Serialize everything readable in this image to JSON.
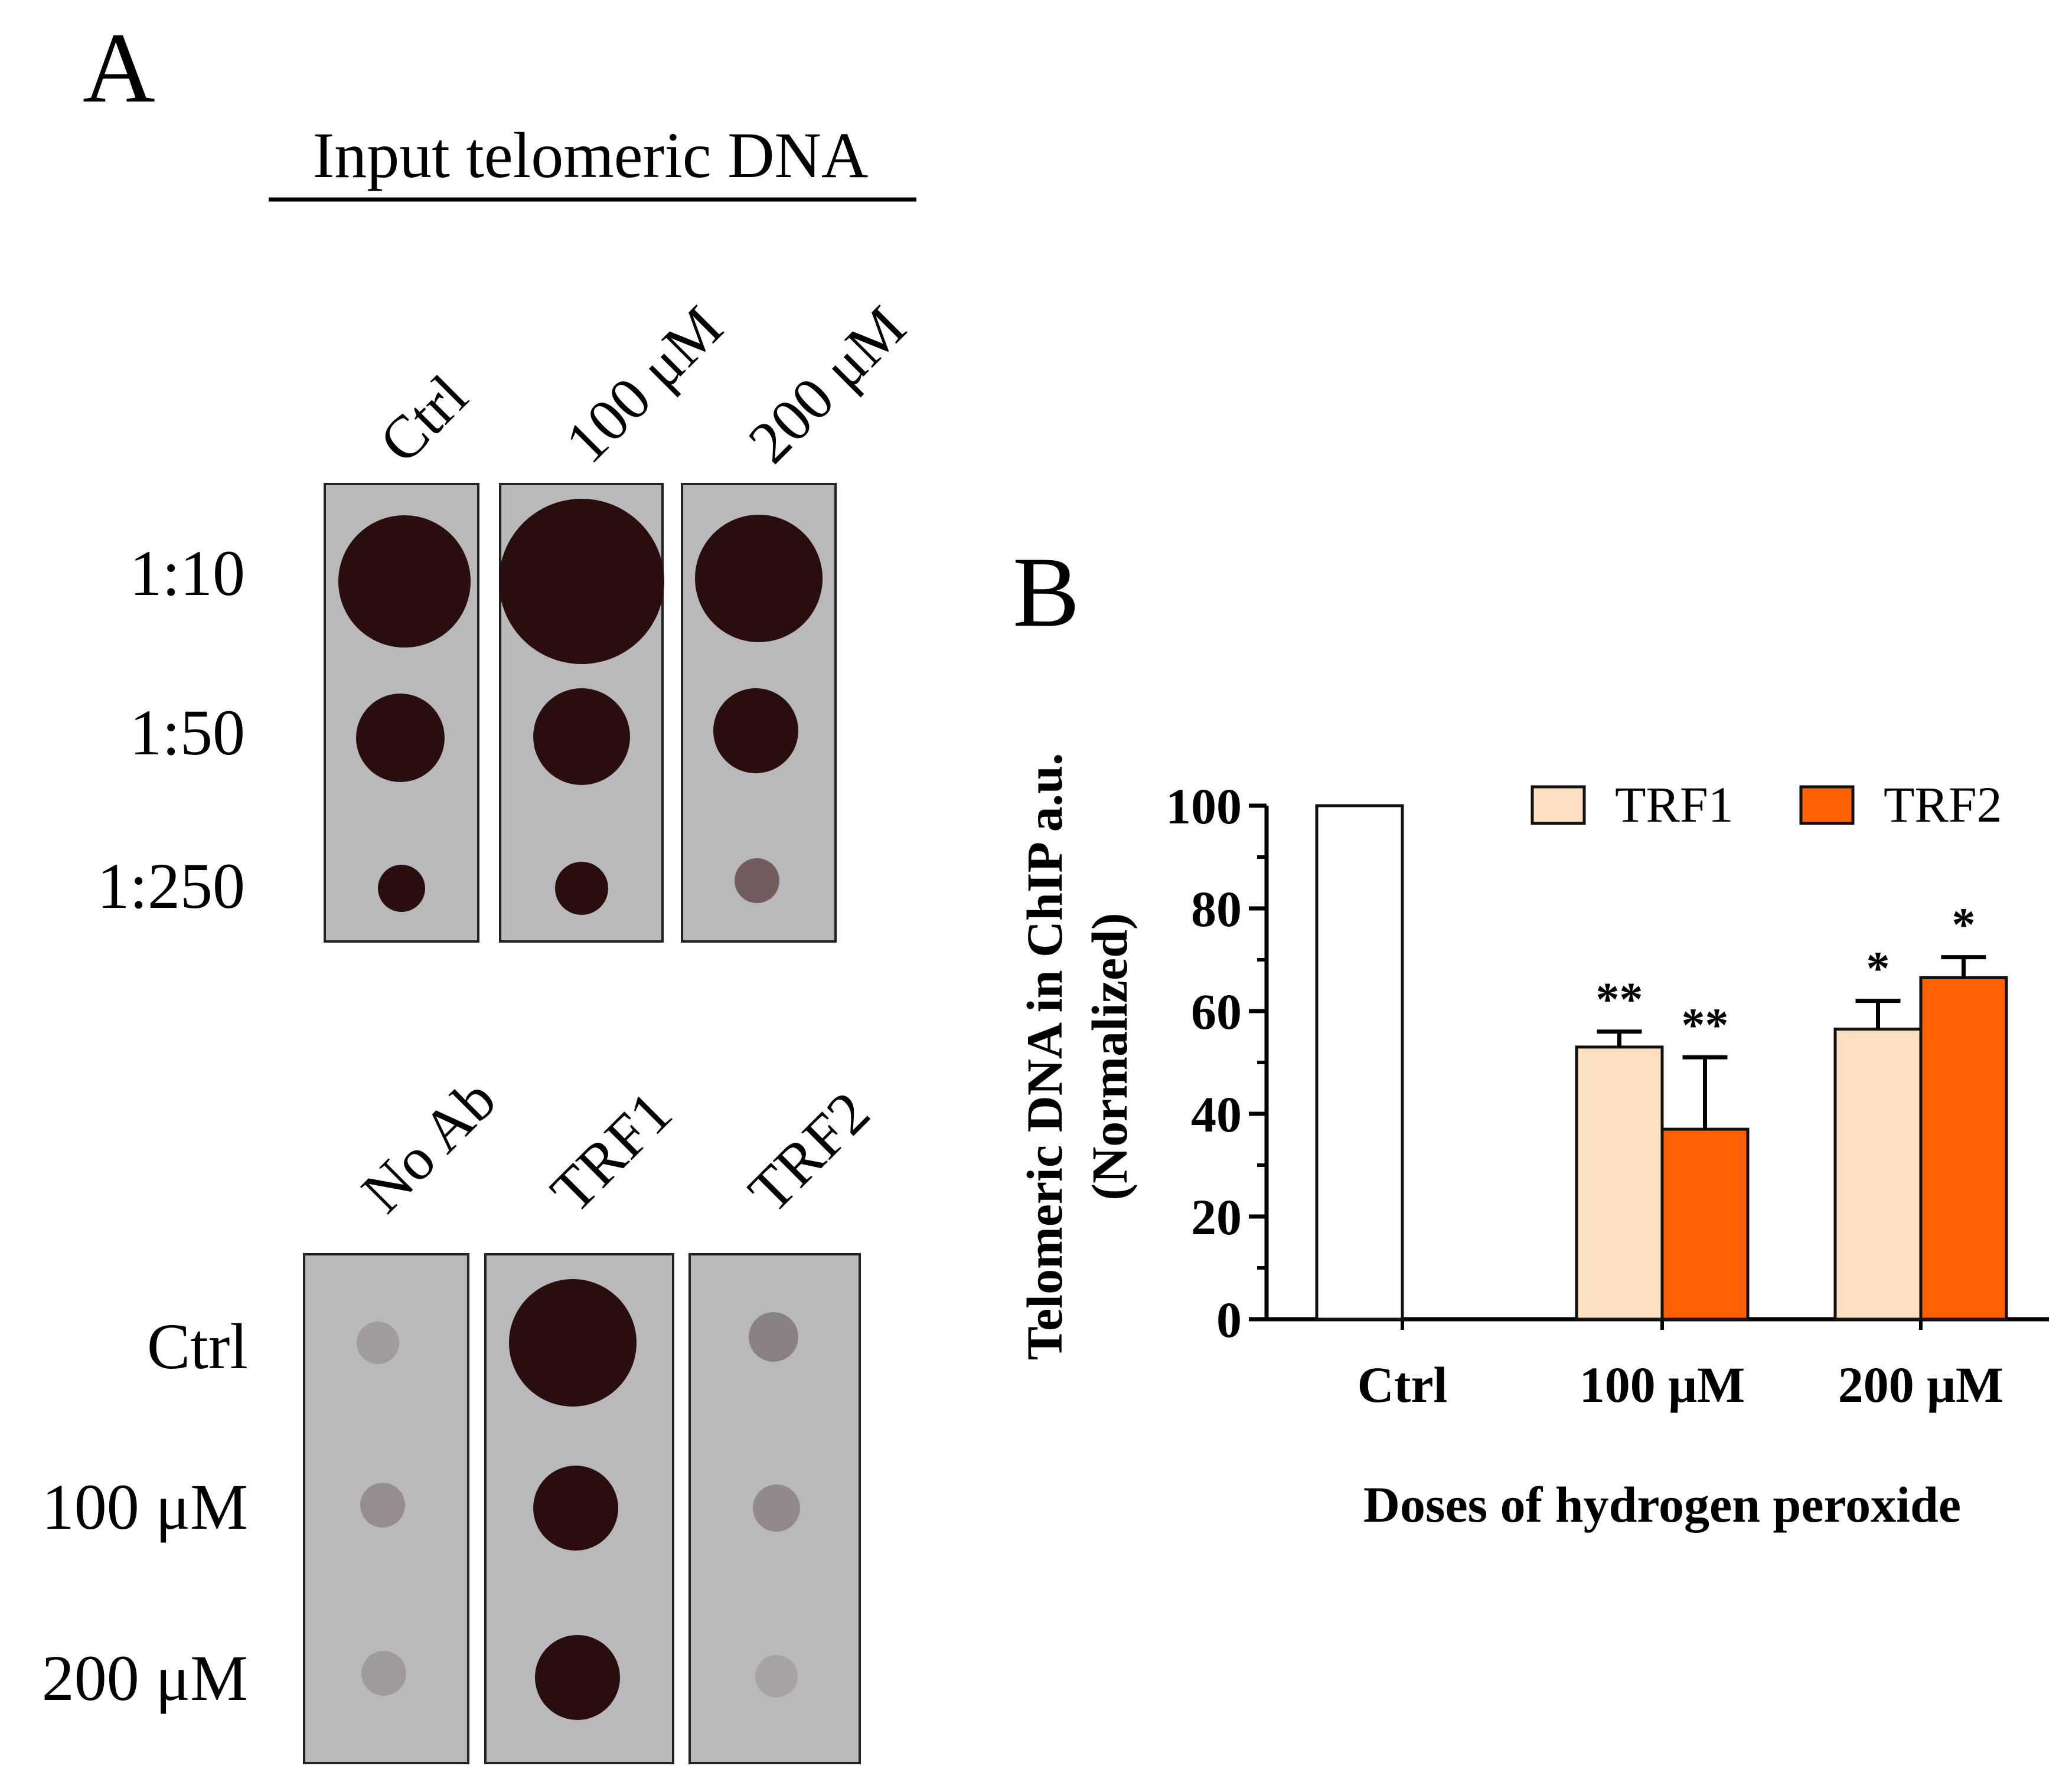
{
  "panel_a": {
    "label": "A",
    "input_title": "Input telomeric DNA",
    "input_columns": [
      "Ctrl",
      "100 μM",
      "200 μM"
    ],
    "input_rows": [
      "1:10",
      "1:50",
      "1:250"
    ],
    "chip_columns": [
      "No Ab",
      "TRF1",
      "TRF2"
    ],
    "chip_rows": [
      "Ctrl",
      "100 μM",
      "200 μM"
    ],
    "colors": {
      "blot_background": "#b9b9bb",
      "dot": "#2a0d0d"
    }
  },
  "panel_b": {
    "label": "B"
  },
  "chart_data": {
    "type": "bar",
    "title": "",
    "xlabel": "Doses of hydrogen peroxide",
    "ylabel_line1": "Telomeric DNA in ChIP a.u.",
    "ylabel_line2": "(Normalized)",
    "ylim": [
      0,
      100
    ],
    "yticks": [
      "0",
      "20",
      "40",
      "60",
      "80",
      "100"
    ],
    "categories": [
      "Ctrl",
      "100 μM",
      "200 μM"
    ],
    "legend_position": "top-right",
    "series": [
      {
        "name": "",
        "values": [
          100,
          null,
          null
        ],
        "errors": [
          null,
          null,
          null
        ],
        "annotations": [
          "",
          "",
          ""
        ],
        "color": "#ffffff"
      },
      {
        "name": "TRF1",
        "values": [
          null,
          53,
          56.5
        ],
        "errors": [
          null,
          3,
          5.5
        ],
        "annotations": [
          "",
          "**",
          "*"
        ],
        "color": "#fde0c2"
      },
      {
        "name": "TRF2",
        "values": [
          null,
          37,
          66.5
        ],
        "errors": [
          null,
          14,
          4
        ],
        "annotations": [
          "",
          "**",
          "*"
        ],
        "color": "#ff6000"
      }
    ]
  }
}
